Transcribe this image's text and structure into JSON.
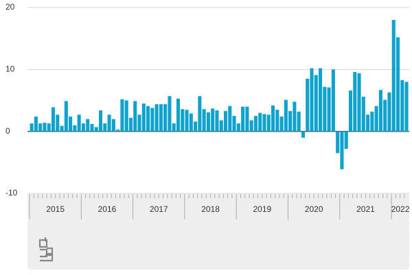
{
  "chart_data": {
    "type": "bar",
    "year_labels": [
      "2015",
      "2016",
      "2017",
      "2018",
      "2019",
      "2020",
      "2021",
      "2022"
    ],
    "values": [
      1.3,
      2.4,
      1.3,
      1.4,
      1.3,
      3.9,
      2.7,
      0.9,
      4.9,
      2.4,
      1.0,
      2.7,
      1.3,
      2.0,
      1.2,
      0.7,
      3.4,
      1.3,
      2.7,
      2.0,
      0.3,
      5.2,
      5.0,
      2.2,
      4.9,
      2.7,
      4.5,
      4.1,
      3.8,
      4.4,
      4.4,
      4.4,
      5.7,
      1.3,
      5.3,
      3.6,
      3.5,
      2.9,
      1.6,
      5.7,
      3.6,
      3.1,
      3.7,
      3.4,
      1.8,
      3.3,
      4.1,
      2.5,
      1.3,
      4.0,
      4.0,
      1.8,
      2.5,
      3.0,
      2.8,
      2.7,
      4.2,
      3.5,
      2.4,
      5.1,
      3.3,
      4.8,
      3.2,
      -1.0,
      8.5,
      10.2,
      9.1,
      10.2,
      7.2,
      7.1,
      10.0,
      -3.5,
      -6.1,
      -2.8,
      6.6,
      9.6,
      9.4,
      5.6,
      2.7,
      3.2,
      4.1,
      6.7,
      5.1,
      6.3,
      18.0,
      15.2,
      8.3,
      8.0
    ],
    "color": "#0ea2cc",
    "ylim": [
      -10,
      20
    ],
    "yticks": [
      -10,
      0,
      10,
      20
    ],
    "grid": true
  }
}
